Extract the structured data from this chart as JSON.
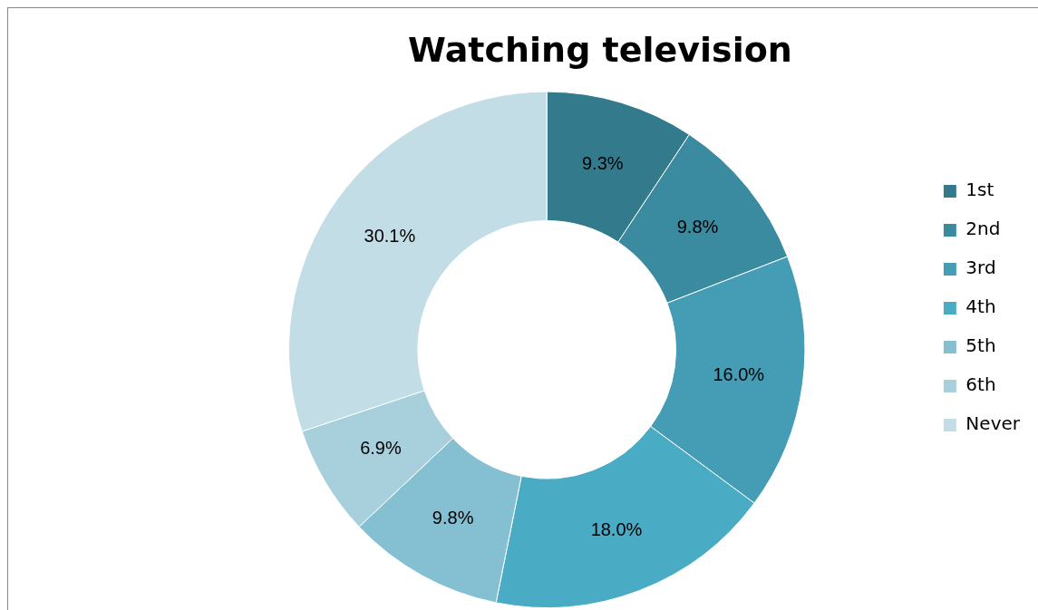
{
  "chart_data": {
    "type": "donut",
    "title": "Watching television",
    "categories": [
      "1st",
      "2nd",
      "3rd",
      "4th",
      "5th",
      "6th",
      "Never"
    ],
    "values": [
      9.3,
      9.8,
      16.0,
      18.0,
      9.8,
      6.9,
      30.1
    ],
    "value_labels": [
      "9.3%",
      "9.8%",
      "16.0%",
      "18.0%",
      "9.8%",
      "6.9%",
      "30.1%"
    ],
    "colors": [
      "#337b8c",
      "#3a8aa0",
      "#449db5",
      "#4aabc5",
      "#85bfd2",
      "#a8cfdc",
      "#c3dde6"
    ],
    "legend": "right"
  }
}
